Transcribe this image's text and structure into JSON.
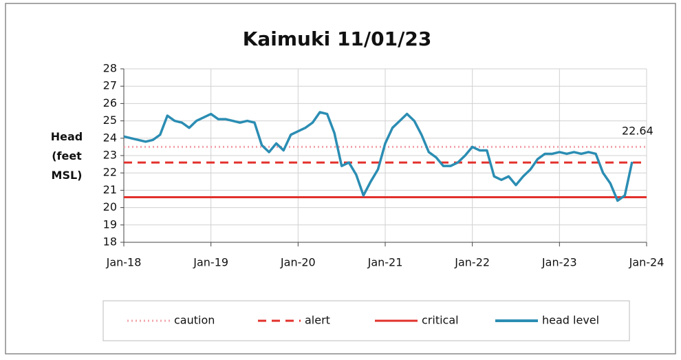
{
  "chart_data": {
    "type": "line",
    "title": "Kaimuki 11/01/23",
    "y_label": "Head (feet MSL)",
    "categories": [
      "Jan-18",
      null,
      null,
      null,
      null,
      null,
      null,
      null,
      null,
      null,
      null,
      null,
      "Jan-19",
      null,
      null,
      null,
      null,
      null,
      null,
      null,
      null,
      null,
      null,
      null,
      "Jan-20",
      null,
      null,
      null,
      null,
      null,
      null,
      null,
      null,
      null,
      null,
      null,
      "Jan-21",
      null,
      null,
      null,
      null,
      null,
      null,
      null,
      null,
      null,
      null,
      null,
      "Jan-22",
      null,
      null,
      null,
      null,
      null,
      null,
      null,
      null,
      null,
      null,
      null,
      "Jan-23",
      null,
      null,
      null,
      null,
      null,
      null,
      null,
      null,
      null,
      null,
      null,
      "Jan-24"
    ],
    "ylim": [
      18,
      28
    ],
    "yticks": [
      18,
      19,
      20,
      21,
      22,
      23,
      24,
      25,
      26,
      27,
      28
    ],
    "grid": true,
    "legend": "bottom",
    "series": [
      {
        "name": "caution",
        "color": "#f2a3ab",
        "style": "dotted",
        "value": 23.5
      },
      {
        "name": "alert",
        "color": "#e2302b",
        "style": "dashed",
        "value": 22.6
      },
      {
        "name": "critical",
        "color": "#e2302b",
        "style": "solid",
        "value": 20.6
      },
      {
        "name": "head level",
        "color": "#2b8db3",
        "style": "solid",
        "values": [
          24.1,
          24.0,
          23.9,
          23.8,
          23.9,
          24.2,
          25.3,
          25.0,
          24.9,
          24.6,
          25.0,
          25.2,
          25.4,
          25.1,
          25.1,
          25.0,
          24.9,
          25.0,
          24.9,
          23.6,
          23.2,
          23.7,
          23.3,
          24.2,
          24.4,
          24.6,
          24.9,
          25.5,
          25.4,
          24.3,
          22.4,
          22.6,
          21.9,
          20.7,
          21.5,
          22.2,
          23.7,
          24.6,
          25.0,
          25.4,
          25.0,
          24.2,
          23.2,
          22.9,
          22.4,
          22.4,
          22.6,
          23.0,
          23.5,
          23.3,
          23.3,
          21.8,
          21.6,
          21.8,
          21.3,
          21.8,
          22.2,
          22.8,
          23.1,
          23.1,
          23.2,
          23.1,
          23.2,
          23.1,
          23.2,
          23.1,
          22.0,
          21.4,
          20.4,
          20.7,
          22.64,
          null,
          null
        ]
      }
    ]
  }
}
